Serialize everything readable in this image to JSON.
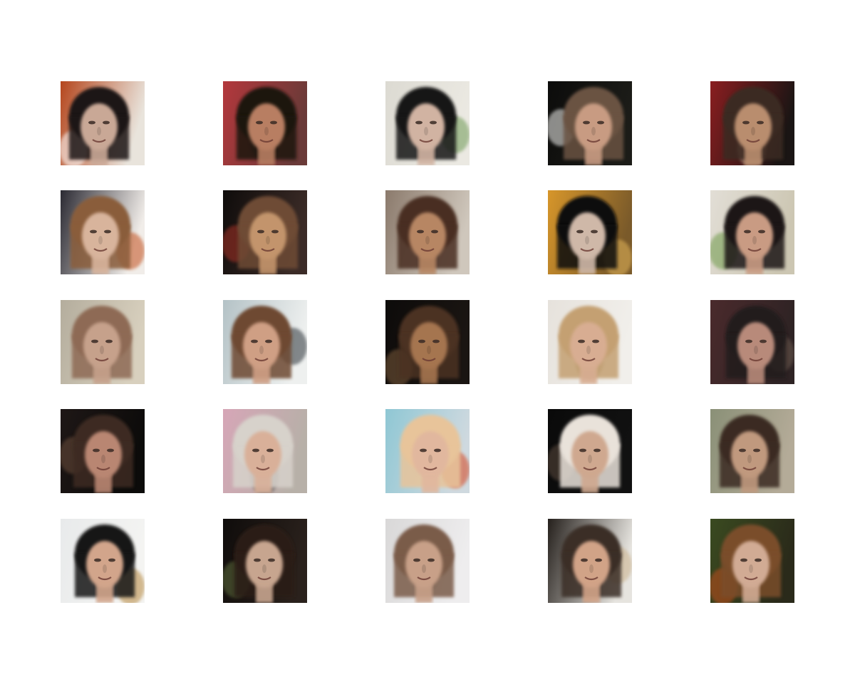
{
  "grid": {
    "rows": 5,
    "cols": 5,
    "tiles": [
      {
        "bg": "#e9e4dc",
        "bg_left": "#b5461d",
        "hair": "#1f1812",
        "skin": "#c9a896",
        "accent": "#ffffff"
      },
      {
        "bg": "#6a3a38",
        "bg_left": "#b3383c",
        "hair": "#1a1411",
        "skin": "#b87e62",
        "accent": "#2a2a2a"
      },
      {
        "bg": "#ebe9e2",
        "bg_left": "#dcdad2",
        "hair": "#151312",
        "skin": "#d1b3a2",
        "accent": "#6e9a55"
      },
      {
        "bg": "#1c1c18",
        "bg_left": "#0c0c0b",
        "hair": "#6b5242",
        "skin": "#c89b82",
        "accent": "#f3f3f0"
      },
      {
        "bg": "#1a1514",
        "bg_left": "#8a1e20",
        "hair": "#3a2a20",
        "skin": "#b98d6e",
        "accent": "#c4a58a"
      },
      {
        "bg": "#f1ede9",
        "bg_left": "#2b2a33",
        "hair": "#8a5d3a",
        "skin": "#d8b49c",
        "accent": "#c24f1c"
      },
      {
        "bg": "#3b2b27",
        "bg_left": "#0f0c0b",
        "hair": "#6e4b36",
        "skin": "#c3946c",
        "accent": "#a63028"
      },
      {
        "bg": "#cfc7bc",
        "bg_left": "#8b7a6c",
        "hair": "#4a2d20",
        "skin": "#b78664",
        "accent": "#d7a25c"
      },
      {
        "bg": "#7a5a2a",
        "bg_left": "#d7962a",
        "hair": "#0f0e0c",
        "skin": "#cfb8a8",
        "accent": "#e4b65a"
      },
      {
        "bg": "#ccc6b2",
        "bg_left": "#e2ded6",
        "hair": "#1a1916",
        "skin": "#c99b83",
        "accent": "#6e9a4a"
      },
      {
        "bg": "#d8d0be",
        "bg_left": "#b4ad9d",
        "hair": "#8e6a55",
        "skin": "#c6a18b",
        "accent": "#3b3334"
      },
      {
        "bg": "#eef0ef",
        "bg_left": "#b4c2c6",
        "hair": "#6e4a32",
        "skin": "#cf9f84",
        "accent": "#2b3138"
      },
      {
        "bg": "#1a1512",
        "bg_left": "#0d0b0a",
        "hair": "#4c3021",
        "skin": "#a5744f",
        "accent": "#7a5a3a"
      },
      {
        "bg": "#f1efeb",
        "bg_left": "#e6e2dc",
        "hair": "#c4a072",
        "skin": "#d8ad92",
        "accent": "#8a7340"
      },
      {
        "bg": "#2e2324",
        "bg_left": "#4a2a2c",
        "hair": "#221a1c",
        "skin": "#b88a7a",
        "accent": "#6a5a50"
      },
      {
        "bg": "#0c0b0a",
        "bg_left": "#1e1716",
        "hair": "#3d2a22",
        "skin": "#b98672",
        "accent": "#6a4d3a"
      },
      {
        "bg": "#b7b0a8",
        "bg_left": "#d6a6b7",
        "hair": "#d7d2cb",
        "skin": "#d9b099",
        "accent": "#5a5654"
      },
      {
        "bg": "#cfd9df",
        "bg_left": "#8fc7d4",
        "hair": "#e8c49a",
        "skin": "#e1b79e",
        "accent": "#d6421c"
      },
      {
        "bg": "#111111",
        "bg_left": "#0a0a0a",
        "hair": "#e9e2da",
        "skin": "#cfa88f",
        "accent": "#5a4a3c"
      },
      {
        "bg": "#b4ab98",
        "bg_left": "#8a9077",
        "hair": "#3a2a22",
        "skin": "#c0997e",
        "accent": "#2a2420"
      },
      {
        "bg": "#f4f4f2",
        "bg_left": "#e8eaeb",
        "hair": "#161412",
        "skin": "#d2a58b",
        "accent": "#b5873e"
      },
      {
        "bg": "#2a211c",
        "bg_left": "#0f0c0b",
        "hair": "#2c1f18",
        "skin": "#c7a58f",
        "accent": "#5b6a3a"
      },
      {
        "bg": "#eeedee",
        "bg_left": "#d9d8d8",
        "hair": "#7a5b4a",
        "skin": "#c8a088",
        "accent": "#a29ea2"
      },
      {
        "bg": "#e6e4df",
        "bg_left": "#25201c",
        "hair": "#3b2f28",
        "skin": "#d1a387",
        "accent": "#c9b08a"
      },
      {
        "bg": "#2a2a1a",
        "bg_left": "#3a4a20",
        "hair": "#7a4d2a",
        "skin": "#d1ab94",
        "accent": "#c14d1e"
      }
    ]
  }
}
